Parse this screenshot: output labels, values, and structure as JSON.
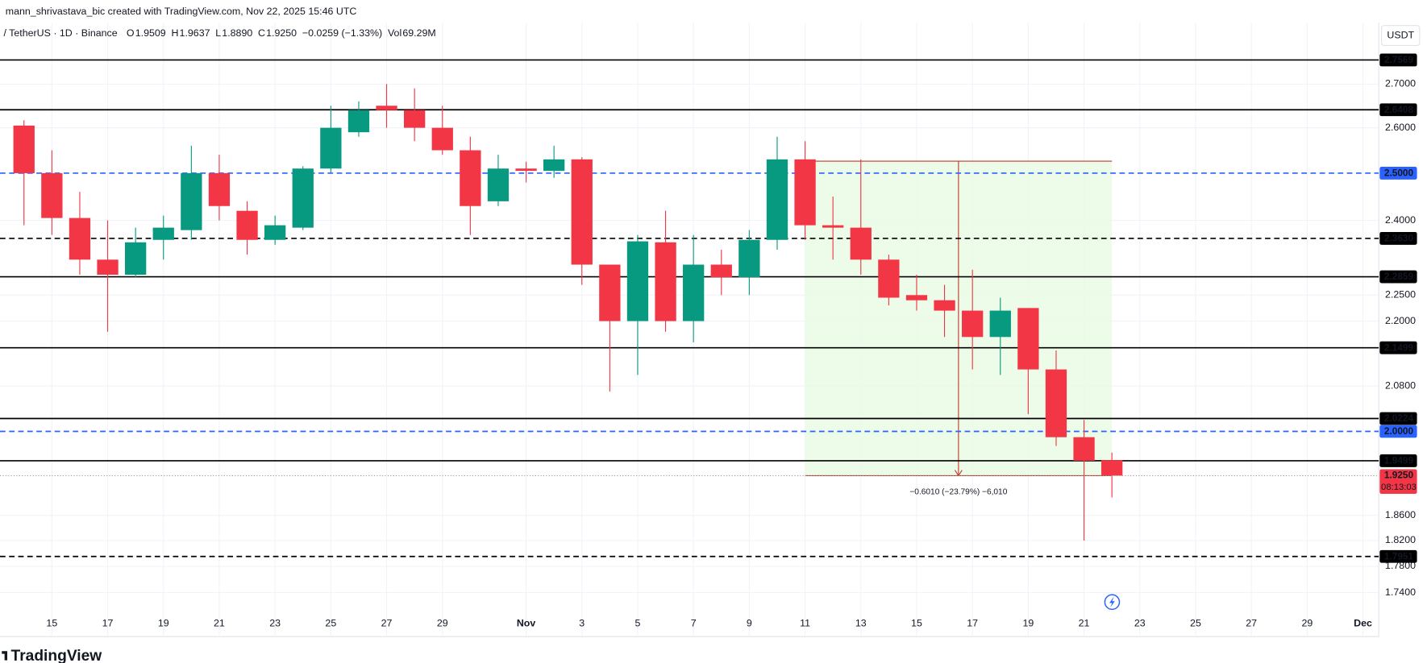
{
  "header": {
    "credit": "mann_shrivastava_bic created with TradingView.com, Nov 22, 2025 15:46 UTC",
    "symbol": "/ TetherUS · 1D · Binance",
    "ohlc": [
      {
        "key": "O",
        "value": "1.9509"
      },
      {
        "key": "H",
        "value": "1.9637"
      },
      {
        "key": "L",
        "value": "1.8890"
      },
      {
        "key": "C",
        "value": "1.9250"
      }
    ],
    "change": "−0.0259 (−1.33%)",
    "volume_key": "Vol",
    "volume": "69.29M",
    "currency": "USDT",
    "logo": "TradingView"
  },
  "chart_data": {
    "type": "candlestick",
    "log_scale": true,
    "grid": true,
    "up_color": "#089981",
    "down_color": "#f23645",
    "x": [
      "2025-10-14",
      "2025-10-15",
      "2025-10-16",
      "2025-10-17",
      "2025-10-18",
      "2025-10-19",
      "2025-10-20",
      "2025-10-21",
      "2025-10-22",
      "2025-10-23",
      "2025-10-24",
      "2025-10-25",
      "2025-10-26",
      "2025-10-27",
      "2025-10-28",
      "2025-10-29",
      "2025-10-30",
      "2025-10-31",
      "2025-11-01",
      "2025-11-02",
      "2025-11-03",
      "2025-11-04",
      "2025-11-05",
      "2025-11-06",
      "2025-11-07",
      "2025-11-08",
      "2025-11-09",
      "2025-11-10",
      "2025-11-11",
      "2025-11-12",
      "2025-11-13",
      "2025-11-14",
      "2025-11-15",
      "2025-11-16",
      "2025-11-17",
      "2025-11-18",
      "2025-11-19",
      "2025-11-20",
      "2025-11-21",
      "2025-11-22"
    ],
    "open": [
      2.605,
      2.5,
      2.405,
      2.32,
      2.29,
      2.36,
      2.38,
      2.5,
      2.42,
      2.36,
      2.385,
      2.51,
      2.59,
      2.65,
      2.64,
      2.6,
      2.55,
      2.44,
      2.51,
      2.505,
      2.53,
      2.31,
      2.2,
      2.355,
      2.2,
      2.31,
      2.285,
      2.36,
      2.53,
      2.39,
      2.385,
      2.32,
      2.25,
      2.24,
      2.22,
      2.17,
      2.225,
      2.11,
      1.99,
      1.9509
    ],
    "high": [
      2.617,
      2.55,
      2.46,
      2.4,
      2.385,
      2.41,
      2.56,
      2.54,
      2.44,
      2.41,
      2.515,
      2.65,
      2.66,
      2.7,
      2.69,
      2.65,
      2.58,
      2.54,
      2.525,
      2.56,
      2.535,
      2.31,
      2.37,
      2.42,
      2.37,
      2.34,
      2.38,
      2.58,
      2.57,
      2.45,
      2.53,
      2.33,
      2.29,
      2.27,
      2.3,
      2.245,
      2.225,
      2.145,
      2.02,
      1.9637
    ],
    "low": [
      2.39,
      2.37,
      2.29,
      2.18,
      2.285,
      2.32,
      2.36,
      2.4,
      2.33,
      2.35,
      2.38,
      2.5,
      2.58,
      2.6,
      2.57,
      2.54,
      2.37,
      2.43,
      2.48,
      2.49,
      2.27,
      2.07,
      2.1,
      2.18,
      2.16,
      2.25,
      2.25,
      2.34,
      2.36,
      2.32,
      2.29,
      2.23,
      2.22,
      2.17,
      2.11,
      2.1,
      2.03,
      1.975,
      1.82,
      1.889
    ],
    "close": [
      2.5,
      2.405,
      2.32,
      2.29,
      2.355,
      2.385,
      2.5,
      2.43,
      2.36,
      2.39,
      2.51,
      2.6,
      2.64,
      2.64,
      2.6,
      2.55,
      2.43,
      2.51,
      2.505,
      2.53,
      2.31,
      2.2,
      2.357,
      2.2,
      2.31,
      2.285,
      2.36,
      2.53,
      2.39,
      2.385,
      2.32,
      2.245,
      2.24,
      2.22,
      2.17,
      2.22,
      2.11,
      1.99,
      1.95,
      1.925
    ],
    "xlim": [
      "2025-10-13",
      "2025-12-02"
    ],
    "ylim": [
      1.675,
      2.847
    ],
    "yticks": [
      {
        "value": 2.7,
        "label": "2.7000"
      },
      {
        "value": 2.6,
        "label": "2.6000"
      },
      {
        "value": 2.4,
        "label": "2.4000"
      },
      {
        "value": 2.25,
        "label": "2.2500"
      },
      {
        "value": 2.2,
        "label": "2.2000"
      },
      {
        "value": 2.08,
        "label": "2.0800"
      },
      {
        "value": 1.86,
        "label": "1.8600"
      },
      {
        "value": 1.82,
        "label": "1.8200"
      },
      {
        "value": 1.78,
        "label": "1.7800"
      },
      {
        "value": 1.74,
        "label": "1.7400"
      }
    ],
    "xticks": [
      {
        "value": "2025-10-15",
        "label": "15"
      },
      {
        "value": "2025-10-17",
        "label": "17"
      },
      {
        "value": "2025-10-19",
        "label": "19"
      },
      {
        "value": "2025-10-21",
        "label": "21"
      },
      {
        "value": "2025-10-23",
        "label": "23"
      },
      {
        "value": "2025-10-25",
        "label": "25"
      },
      {
        "value": "2025-10-27",
        "label": "27"
      },
      {
        "value": "2025-10-29",
        "label": "29"
      },
      {
        "value": "2025-11-01",
        "label": "Nov"
      },
      {
        "value": "2025-11-03",
        "label": "3"
      },
      {
        "value": "2025-11-05",
        "label": "5"
      },
      {
        "value": "2025-11-07",
        "label": "7"
      },
      {
        "value": "2025-11-09",
        "label": "9"
      },
      {
        "value": "2025-11-11",
        "label": "11"
      },
      {
        "value": "2025-11-13",
        "label": "13"
      },
      {
        "value": "2025-11-15",
        "label": "15"
      },
      {
        "value": "2025-11-17",
        "label": "17"
      },
      {
        "value": "2025-11-19",
        "label": "19"
      },
      {
        "value": "2025-11-21",
        "label": "21"
      },
      {
        "value": "2025-11-23",
        "label": "23"
      },
      {
        "value": "2025-11-25",
        "label": "25"
      },
      {
        "value": "2025-11-27",
        "label": "27"
      },
      {
        "value": "2025-11-29",
        "label": "29"
      },
      {
        "value": "2025-12-01",
        "label": "Dec"
      }
    ],
    "price_lines": [
      {
        "value": 2.7569,
        "style": "solid",
        "color": "#000000"
      },
      {
        "value": 2.6408,
        "style": "solid",
        "color": "#000000"
      },
      {
        "value": 2.5,
        "label": "2.5000",
        "style": "dashed",
        "color": "#2962ff"
      },
      {
        "value": 2.363,
        "label": "2.3630",
        "style": "dashed",
        "color": "#000000"
      },
      {
        "value": 2.2859,
        "style": "solid",
        "color": "#000000"
      },
      {
        "value": 2.1499,
        "style": "solid",
        "color": "#000000"
      },
      {
        "value": 2.0224,
        "style": "solid",
        "color": "#000000"
      },
      {
        "value": 2.0,
        "label": "2.0000",
        "style": "dashed",
        "color": "#2962ff"
      },
      {
        "value": 1.9499,
        "style": "solid",
        "color": "#000000"
      },
      {
        "value": 1.7951,
        "style": "dashed",
        "color": "#000000"
      }
    ],
    "last_price": {
      "value": 1.925,
      "label": "1.9250",
      "countdown": "08:13:03",
      "color": "#f23645"
    },
    "measure": {
      "from": "2025-11-11",
      "to": "2025-11-22",
      "top": 2.526,
      "bottom": 1.925,
      "label": "−0.6010 (−23.79%) −6,010",
      "fill": "#e9fbe3",
      "color": "#c0392b"
    }
  }
}
